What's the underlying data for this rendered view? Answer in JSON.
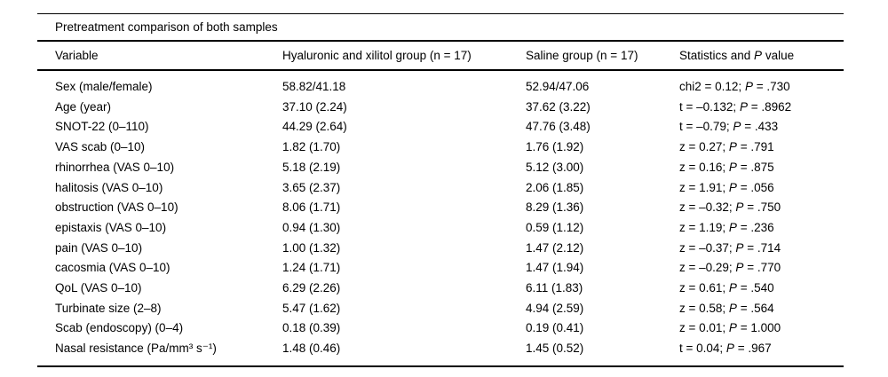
{
  "table": {
    "title": "Pretreatment comparison of both samples",
    "columns": {
      "variable": "Variable",
      "group1": "Hyaluronic and xilitol group (n = 17)",
      "group2": "Saline group (n = 17)",
      "stats_prefix": "Statistics and ",
      "stats_p": "P",
      "stats_suffix": " value"
    },
    "rows": [
      {
        "variable": "Sex (male/female)",
        "group1": "58.82/41.18",
        "group2": "52.94/47.06",
        "stat": "chi2 = 0.12; ",
        "p_label": "P",
        "p_value": " = .730"
      },
      {
        "variable": "Age (year)",
        "group1": "37.10 (2.24)",
        "group2": "37.62 (3.22)",
        "stat": "t = –0.132; ",
        "p_label": "P",
        "p_value": " = .8962"
      },
      {
        "variable": "SNOT-22 (0–110)",
        "group1": "44.29 (2.64)",
        "group2": "47.76 (3.48)",
        "stat": "t = –0.79; ",
        "p_label": "P",
        "p_value": " = .433"
      },
      {
        "variable": "VAS scab (0–10)",
        "group1": "1.82 (1.70)",
        "group2": "1.76 (1.92)",
        "stat": "z = 0.27; ",
        "p_label": "P",
        "p_value": " = .791"
      },
      {
        "variable": "rhinorrhea (VAS 0–10)",
        "group1": "5.18 (2.19)",
        "group2": "5.12 (3.00)",
        "stat": "z = 0.16; ",
        "p_label": "P",
        "p_value": " = .875"
      },
      {
        "variable": "halitosis (VAS 0–10)",
        "group1": "3.65 (2.37)",
        "group2": "2.06 (1.85)",
        "stat": "z = 1.91; ",
        "p_label": "P",
        "p_value": " = .056"
      },
      {
        "variable": "obstruction (VAS 0–10)",
        "group1": "8.06 (1.71)",
        "group2": "8.29 (1.36)",
        "stat": "z = –0.32; ",
        "p_label": "P",
        "p_value": " = .750"
      },
      {
        "variable": "epistaxis (VAS 0–10)",
        "group1": "0.94 (1.30)",
        "group2": "0.59 (1.12)",
        "stat": "z = 1.19; ",
        "p_label": "P",
        "p_value": " = .236"
      },
      {
        "variable": "pain (VAS 0–10)",
        "group1": "1.00 (1.32)",
        "group2": "1.47 (2.12)",
        "stat": "z = –0.37; ",
        "p_label": "P",
        "p_value": " = .714"
      },
      {
        "variable": "cacosmia (VAS 0–10)",
        "group1": "1.24 (1.71)",
        "group2": "1.47 (1.94)",
        "stat": "z = –0.29; ",
        "p_label": "P",
        "p_value": " = .770"
      },
      {
        "variable": "QoL (VAS 0–10)",
        "group1": "6.29 (2.26)",
        "group2": "6.11 (1.83)",
        "stat": "z = 0.61; ",
        "p_label": "P",
        "p_value": " = .540"
      },
      {
        "variable": "Turbinate size (2–8)",
        "group1": "5.47 (1.62)",
        "group2": "4.94 (2.59)",
        "stat": "z = 0.58; ",
        "p_label": "P",
        "p_value": " = .564"
      },
      {
        "variable": "Scab (endoscopy) (0–4)",
        "group1": "0.18 (0.39)",
        "group2": "0.19 (0.41)",
        "stat": "z = 0.01; ",
        "p_label": "P",
        "p_value": " = 1.000"
      },
      {
        "variable": "Nasal resistance (Pa/mm³ s⁻¹)",
        "group1": "1.48 (0.46)",
        "group2": "1.45 (0.52)",
        "stat": "t = 0.04; ",
        "p_label": "P",
        "p_value": " = .967"
      }
    ]
  }
}
